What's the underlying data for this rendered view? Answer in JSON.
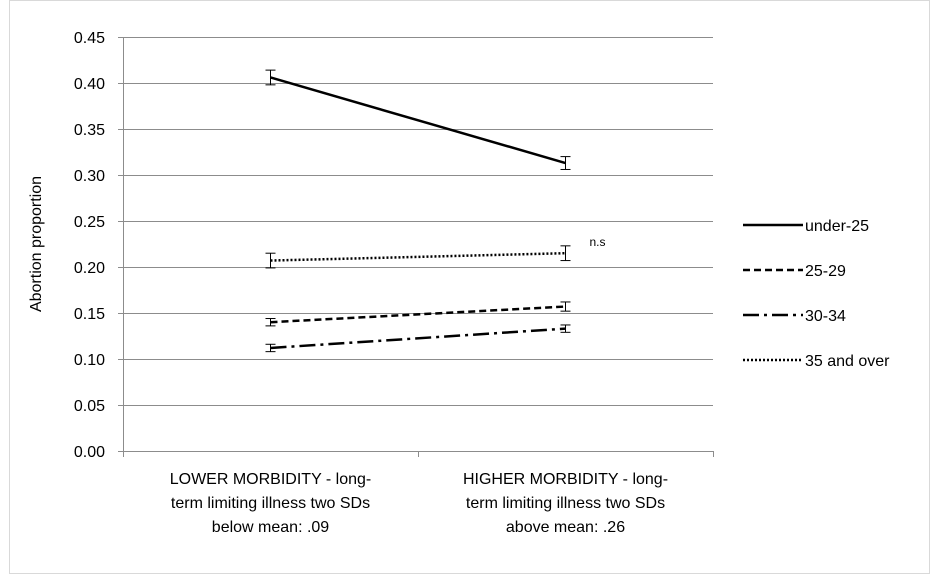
{
  "chart_data": {
    "type": "line",
    "title": "",
    "ylabel": "Abortion proportion",
    "xlabel": "",
    "ylim": [
      0,
      0.45
    ],
    "ytick_step": 0.05,
    "ytick_labels": [
      "0.00",
      "0.05",
      "0.10",
      "0.15",
      "0.20",
      "0.25",
      "0.30",
      "0.35",
      "0.40",
      "0.45"
    ],
    "grid": true,
    "legend_position": "right",
    "categories": [
      [
        "LOWER MORBIDITY - long-",
        "term limiting illness two SDs",
        "below mean: .09"
      ],
      [
        "HIGHER MORBIDITY - long-",
        "term limiting illness two SDs",
        "above mean: .26"
      ]
    ],
    "series": [
      {
        "name": "under-25",
        "values": [
          0.406,
          0.313
        ],
        "error": [
          0.008,
          0.007
        ],
        "line_style": "solid"
      },
      {
        "name": "25-29",
        "values": [
          0.14,
          0.157
        ],
        "error": [
          0.004,
          0.005
        ],
        "line_style": "dashed"
      },
      {
        "name": "30-34",
        "values": [
          0.112,
          0.133
        ],
        "error": [
          0.004,
          0.004
        ],
        "line_style": "dash-dot"
      },
      {
        "name": "35 and over",
        "values": [
          0.207,
          0.215
        ],
        "error": [
          0.008,
          0.008
        ],
        "line_style": "dotted"
      }
    ],
    "annotations": [
      {
        "text": "n.s",
        "series": "35 and over",
        "category_index": 1
      }
    ]
  }
}
